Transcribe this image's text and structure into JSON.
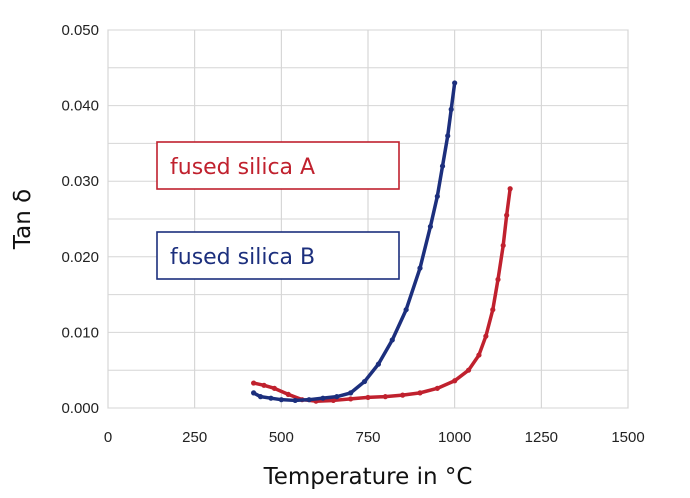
{
  "chart_data": {
    "type": "line",
    "xlabel": "Temperature in °C",
    "ylabel": "Tan δ",
    "xlim": [
      0,
      1500
    ],
    "ylim": [
      0,
      0.05
    ],
    "x_ticks": [
      0,
      250,
      500,
      750,
      1000,
      1250,
      1500
    ],
    "y_ticks": [
      0.0,
      0.01,
      0.02,
      0.03,
      0.04,
      0.05
    ],
    "x_tick_labels": [
      "0",
      "250",
      "500",
      "750",
      "1000",
      "1250",
      "1500"
    ],
    "y_tick_labels": [
      "0.000",
      "0.010",
      "0.020",
      "0.030",
      "0.040",
      "0.050"
    ],
    "grid": true,
    "legend_placement": "center-left",
    "series": [
      {
        "name": "fused silica A",
        "color": "#c0212e",
        "x": [
          420,
          450,
          480,
          520,
          560,
          600,
          650,
          700,
          750,
          800,
          850,
          900,
          950,
          1000,
          1040,
          1070,
          1090,
          1110,
          1125,
          1140,
          1150,
          1160
        ],
        "y": [
          0.0033,
          0.003,
          0.0026,
          0.0018,
          0.0011,
          0.0009,
          0.001,
          0.0012,
          0.0014,
          0.0015,
          0.0017,
          0.002,
          0.0026,
          0.0036,
          0.005,
          0.007,
          0.0095,
          0.013,
          0.017,
          0.0215,
          0.0255,
          0.029
        ]
      },
      {
        "name": "fused silica B",
        "color": "#1c2f7d",
        "x": [
          420,
          440,
          470,
          500,
          540,
          580,
          620,
          660,
          700,
          740,
          780,
          820,
          860,
          900,
          930,
          950,
          965,
          980,
          990,
          1000
        ],
        "y": [
          0.002,
          0.0015,
          0.0013,
          0.0011,
          0.001,
          0.0011,
          0.0013,
          0.0015,
          0.002,
          0.0035,
          0.0058,
          0.009,
          0.013,
          0.0185,
          0.024,
          0.028,
          0.032,
          0.036,
          0.0395,
          0.043
        ]
      }
    ]
  }
}
